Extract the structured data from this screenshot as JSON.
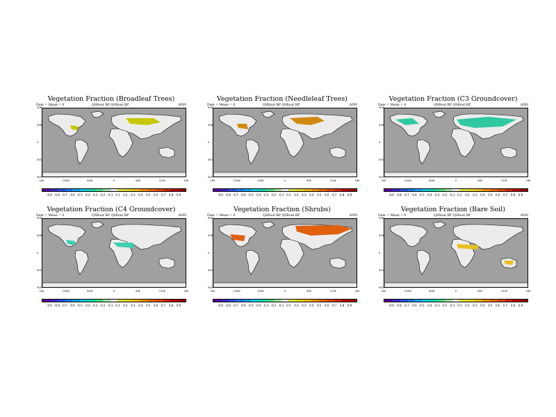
{
  "panels": [
    {
      "title": "Vegetation Fraction (Broadleaf Trees)",
      "sub_left": "Dam = Mean = 0",
      "sub_mid": "QSRout BP   QSRout BP",
      "sub_right": "ANN",
      "highlight": "#c8c800"
    },
    {
      "title": "Vegetation Fraction (Needleleaf Trees)",
      "sub_left": "Dam = Mean = 0",
      "sub_mid": "QSRout BP   QSRout BP",
      "sub_right": "ANN",
      "highlight": "#d08a10"
    },
    {
      "title": "Vegetation Fraction (C3 Groundcover)",
      "sub_left": "Dam = Mean = 0",
      "sub_mid": "QSRout BP   QSRout BP",
      "sub_right": "ANN",
      "highlight": "#30c8a0"
    },
    {
      "title": "Vegetation Fraction (C4 Groundcover)",
      "sub_left": "Dam = Mean = 0",
      "sub_mid": "QSRout BP   QSRout BP",
      "sub_right": "ANN",
      "highlight": "#40d0b0"
    },
    {
      "title": "Vegetation Fraction (Shrubs)",
      "sub_left": "Dam = Mean = 0",
      "sub_mid": "QSRout BP   QSRout BP",
      "sub_right": "ANN",
      "highlight": "#e06010"
    },
    {
      "title": "Vegetation Fraction (Bare Soil)",
      "sub_left": "Dam = Mean = 0",
      "sub_mid": "QSRout BP   QSRout BP",
      "sub_right": "ANN",
      "highlight": "#e8c020"
    }
  ],
  "lat_labels": [
    "90N",
    "45N",
    "0",
    "45S",
    "90S"
  ],
  "lon_labels": [
    "180",
    "120W",
    "60W",
    "0",
    "60E",
    "120E",
    "180"
  ],
  "colorbar": {
    "labels": [
      "-0.9",
      "-0.8",
      "-0.7",
      "-0.6",
      "-0.5",
      "-0.4",
      "-0.3",
      "-0.2",
      "-0.1",
      "0.1",
      "0.2",
      "0.3",
      "0.4",
      "0.5",
      "0.6",
      "0.7",
      "0.8",
      "0.9"
    ],
    "colors": [
      "#5a00a0",
      "#3c28c8",
      "#2850e0",
      "#1e78f0",
      "#14a0f0",
      "#10c8e0",
      "#10d8b0",
      "#40e080",
      "#a0e0a0",
      "#e8e8e8",
      "#d8e040",
      "#e8d020",
      "#f0b810",
      "#f09000",
      "#e86800",
      "#e04800",
      "#d02800",
      "#c00000",
      "#a00000"
    ]
  },
  "colors": {
    "ocean": "#a0a0a0",
    "land": "#ececec"
  }
}
